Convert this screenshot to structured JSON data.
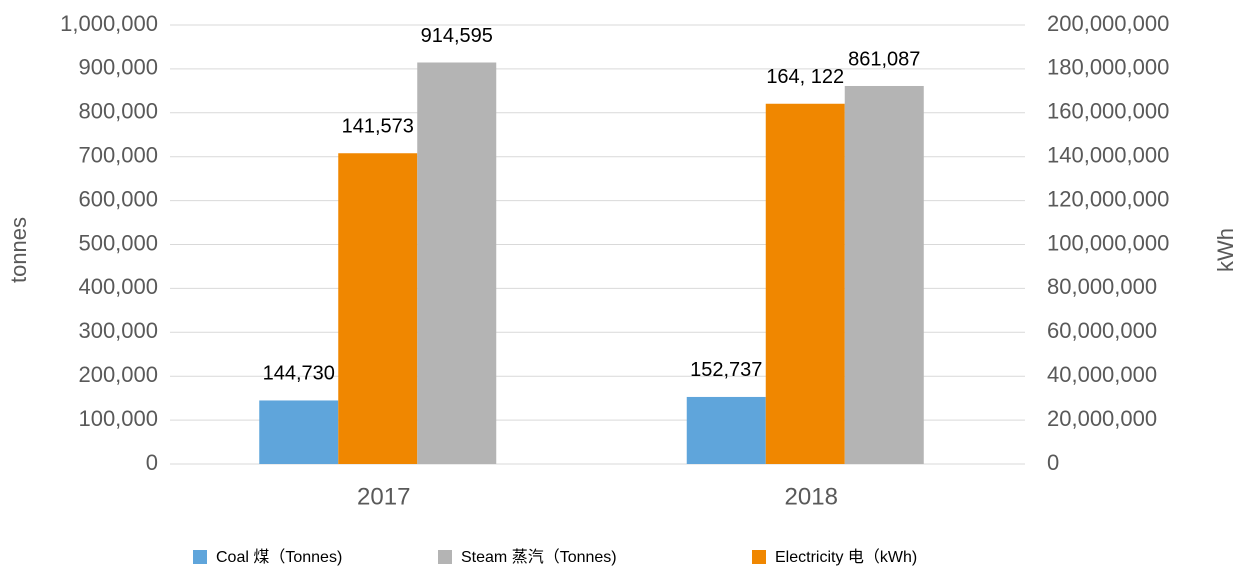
{
  "chart_data": {
    "type": "bar",
    "categories": [
      "2017",
      "2018"
    ],
    "series": [
      {
        "name": "Coal 煤（Tonnes)",
        "color": "#5fa5db",
        "values": [
          144730,
          152737
        ],
        "value_labels": [
          "144,730",
          "152,737"
        ]
      },
      {
        "name": "Electricity 电（kWh)",
        "color": "#f08700",
        "axis": "y2",
        "values": [
          141573000,
          164122000
        ],
        "value_labels": [
          "141,573",
          "164, 122"
        ]
      },
      {
        "name": "Steam  蒸汽（Tonnes)",
        "color": "#b4b4b4",
        "values": [
          914595,
          861087
        ],
        "value_labels": [
          "914,595",
          "861,087"
        ]
      }
    ],
    "ylabel": "tonnes",
    "y2label": "kWh",
    "ylim": [
      0,
      1000000
    ],
    "yticks": [
      0,
      {
        "value": 100000,
        "label": "100,000"
      },
      {
        "value": 200000,
        "label": "200,000"
      },
      {
        "value": 300000,
        "label": "300,000"
      },
      {
        "value": 400000,
        "label": "400,000"
      },
      {
        "value": 500000,
        "label": "500,000"
      },
      {
        "value": 600000,
        "label": "600,000"
      },
      {
        "value": 700000,
        "label": "700,000"
      },
      {
        "value": 800000,
        "label": "800,000"
      },
      {
        "value": 900000,
        "label": "900,000"
      },
      {
        "value": 1000000,
        "label": "1,000,000"
      }
    ],
    "y2lim": [
      0,
      200000000
    ],
    "y2ticks": [
      0,
      {
        "value": 20000000,
        "label": "20,000,000"
      },
      {
        "value": 40000000,
        "label": "40,000,000"
      },
      {
        "value": 60000000,
        "label": "60,000,000"
      },
      {
        "value": 80000000,
        "label": "80,000,000"
      },
      {
        "value": 100000000,
        "label": "100,000,000"
      },
      {
        "value": 120000000,
        "label": "120,000,000"
      },
      {
        "value": 140000000,
        "label": "140,000,000"
      },
      {
        "value": 160000000,
        "label": "160,000,000"
      },
      {
        "value": 180000000,
        "label": "180,000,000"
      },
      {
        "value": 200000000,
        "label": "200,000,000"
      }
    ],
    "grid": true,
    "legend": "bottom"
  }
}
